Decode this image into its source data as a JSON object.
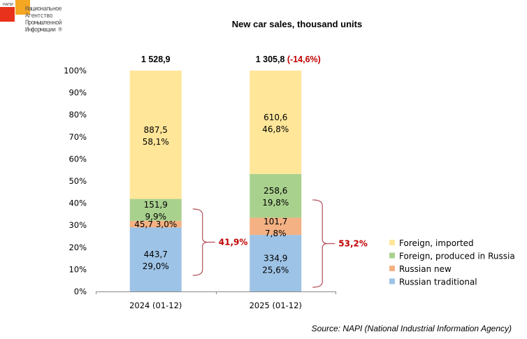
{
  "logo": {
    "small_text": "НАПИ",
    "lines": [
      "Национальное",
      "Агентство",
      "Промышленной",
      "Информации ®"
    ]
  },
  "source": "Source: NAPI (National Industrial Information Agency)",
  "colors": {
    "foreign_imported": "#ffe699",
    "foreign_produced": "#a9d18e",
    "russian_new": "#f4b183",
    "russian_traditional": "#9dc3e6",
    "accent_red": "#c00000",
    "bracket": "#b5505a"
  },
  "chart_data": {
    "type": "bar",
    "stacked": true,
    "normalized": true,
    "title": "New car sales, thousand units",
    "categories": [
      "2024 (01-12)",
      "2025 (01-12)"
    ],
    "totals": [
      "1 528,9",
      "1 305,8"
    ],
    "total_change": [
      "",
      "(-14,6%)"
    ],
    "ylim": [
      0,
      100
    ],
    "yticks": [
      "0%",
      "10%",
      "20%",
      "30%",
      "40%",
      "50%",
      "60%",
      "70%",
      "80%",
      "90%",
      "100%"
    ],
    "series": [
      {
        "name": "Russian traditional",
        "color_key": "russian_traditional",
        "values": [
          443.7,
          334.9
        ],
        "shares": [
          29.0,
          25.6
        ],
        "labels": [
          "443,7",
          "334,9"
        ],
        "share_labels": [
          "29,0%",
          "25,6%"
        ]
      },
      {
        "name": "Russian new",
        "color_key": "russian_new",
        "values": [
          45.7,
          101.7
        ],
        "shares": [
          3.0,
          7.8
        ],
        "labels": [
          "45,7",
          "101,7"
        ],
        "share_labels": [
          "3,0%",
          "7,8%"
        ]
      },
      {
        "name": "Foreign, produced in Russia",
        "color_key": "foreign_produced",
        "values": [
          151.9,
          258.6
        ],
        "shares": [
          9.9,
          19.8
        ],
        "labels": [
          "151,9",
          "258,6"
        ],
        "share_labels": [
          "9,9%",
          "19,8%"
        ]
      },
      {
        "name": "Foreign, imported",
        "color_key": "foreign_imported",
        "values": [
          887.5,
          610.6
        ],
        "shares": [
          58.1,
          46.8
        ],
        "labels": [
          "887,5",
          "610,6"
        ],
        "share_labels": [
          "58,1%",
          "46,8%"
        ]
      }
    ],
    "brackets": [
      "41,9%",
      "53,2%"
    ],
    "legend": {
      "position": "bottom-right",
      "entries": [
        "Foreign, imported",
        "Foreign, produced in Russia",
        "Russian new",
        "Russian traditional"
      ]
    }
  }
}
